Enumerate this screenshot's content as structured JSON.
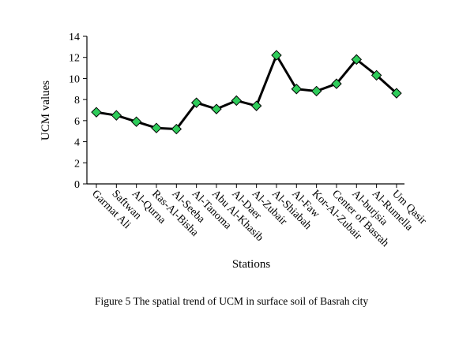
{
  "chart_data": {
    "type": "line",
    "title": "",
    "xlabel": "Stations",
    "ylabel": "UCM values",
    "ylim": [
      0,
      14
    ],
    "yticks": [
      0,
      2,
      4,
      6,
      8,
      10,
      12,
      14
    ],
    "grid": false,
    "legend": "none",
    "categories": [
      "Garmat Ali",
      "Saftwan",
      "Al-Qurna",
      "Ras-Al-Bisha",
      "Al-Seeba",
      "Al-Tanoma",
      "Abu Al-Khasib",
      "Al-Daer",
      "Al-Zubair",
      "Al-Shiabah",
      "Al-Faw",
      "Kor-Al-Zubair",
      "Center of Basrah",
      "Al-burjsia",
      "Al-Rumella",
      "Um Qasir"
    ],
    "series": [
      {
        "values": [
          6.8,
          6.5,
          5.9,
          5.3,
          5.2,
          7.7,
          7.1,
          7.9,
          7.4,
          12.2,
          9.0,
          8.8,
          9.5,
          11.8,
          10.3,
          8.6
        ],
        "line_color": "#000000",
        "marker": "diamond",
        "marker_color": "#2ecc5a"
      }
    ]
  },
  "caption": "Figure 5 The spatial trend of UCM in surface soil of Basrah city"
}
